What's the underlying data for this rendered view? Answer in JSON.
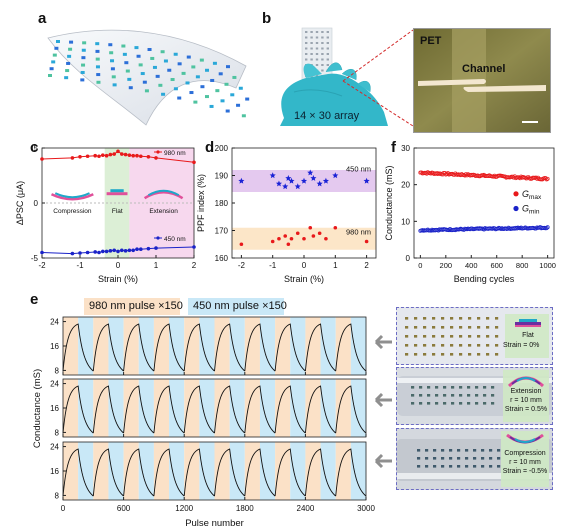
{
  "panel_labels": {
    "a": "a",
    "b": "b",
    "c": "c",
    "d": "d",
    "e": "e",
    "f": "f"
  },
  "panel_b": {
    "array_label": "14 × 30 array",
    "inset_pet": "PET",
    "inset_channel": "Channel"
  },
  "panel_e": {
    "legend_980": "980 nm pulse ×150",
    "legend_450": "450 nm pulse ×150",
    "photo_flat": {
      "title": "Flat",
      "line2": "Strain = 0%"
    },
    "photo_ext": {
      "title": "Extension",
      "line2": "r = 10 mm",
      "line3": "Strain = 0.5%"
    },
    "photo_comp": {
      "title": "Compression",
      "line2": "r = 10 mm",
      "line3": "Strain = -0.5%"
    }
  },
  "colors": {
    "red": "#e8191b",
    "blue": "#1a22c8",
    "orange_band": "#fbe1c7",
    "blue_band": "#c9e8f7",
    "green_band": "#dcefd6",
    "pink_band": "#f7d8ee",
    "purple_band": "#e4c9ef",
    "ppf_orange_band": "#fce6c8",
    "star_blue": "#1b22d6"
  },
  "chart_data": [
    {
      "id": "c",
      "type": "line",
      "xlabel": "Strain (%)",
      "ylabel": "ΔPSC (μA)",
      "xlim": [
        -2,
        2
      ],
      "ylim": [
        -5,
        5
      ],
      "xticks": [
        "-2",
        "-1",
        "0",
        "1",
        "2"
      ],
      "yticks": [
        "-5",
        "0",
        "5"
      ],
      "region_labels": [
        "Compression",
        "Flat",
        "Extension"
      ],
      "series": [
        {
          "name": "980 nm",
          "x": [
            -2,
            -1.2,
            -1.0,
            -0.8,
            -0.6,
            -0.5,
            -0.4,
            -0.3,
            -0.2,
            -0.1,
            0,
            0.1,
            0.2,
            0.3,
            0.4,
            0.5,
            0.6,
            0.8,
            1.0,
            2.0
          ],
          "y": [
            4.0,
            4.1,
            4.2,
            4.25,
            4.3,
            4.25,
            4.35,
            4.3,
            4.4,
            4.45,
            4.7,
            4.45,
            4.4,
            4.35,
            4.3,
            4.3,
            4.25,
            4.2,
            4.1,
            3.7
          ]
        },
        {
          "name": "450 nm",
          "x": [
            -2,
            -1.2,
            -1.0,
            -0.8,
            -0.6,
            -0.5,
            -0.4,
            -0.3,
            -0.2,
            -0.1,
            0,
            0.1,
            0.2,
            0.3,
            0.4,
            0.5,
            0.6,
            0.8,
            1.0,
            2.0
          ],
          "y": [
            -4.5,
            -4.6,
            -4.55,
            -4.5,
            -4.45,
            -4.5,
            -4.4,
            -4.4,
            -4.35,
            -4.3,
            -4.4,
            -4.3,
            -4.35,
            -4.3,
            -4.3,
            -4.2,
            -4.2,
            -4.15,
            -4.1,
            -4.0
          ]
        }
      ]
    },
    {
      "id": "d",
      "type": "scatter",
      "xlabel": "Strain (%)",
      "ylabel": "PPF index (%)",
      "xlim": [
        -2.3,
        2.3
      ],
      "ylim": [
        160,
        200
      ],
      "xticks": [
        "-2",
        "-1",
        "0",
        "1",
        "2"
      ],
      "yticks": [
        "160",
        "170",
        "180",
        "190",
        "200"
      ],
      "series": [
        {
          "name": "450 nm",
          "x": [
            -2,
            -1,
            -0.8,
            -0.6,
            -0.5,
            -0.4,
            -0.2,
            0,
            0.2,
            0.3,
            0.5,
            0.7,
            1.0,
            2.0
          ],
          "y": [
            188,
            190,
            187,
            186,
            189,
            188,
            186,
            188,
            191,
            189,
            187,
            188,
            190,
            188
          ]
        },
        {
          "name": "980 nm",
          "x": [
            -2,
            -1,
            -0.8,
            -0.6,
            -0.5,
            -0.4,
            -0.2,
            0,
            0.2,
            0.3,
            0.5,
            0.7,
            1.0,
            2.0
          ],
          "y": [
            165,
            166,
            167,
            168,
            165,
            167,
            169,
            167,
            171,
            168,
            169,
            167,
            171,
            166
          ]
        }
      ]
    },
    {
      "id": "f",
      "type": "scatter",
      "xlabel": "Bending cycles",
      "ylabel": "Conductance (mS)",
      "xlim": [
        -50,
        1050
      ],
      "ylim": [
        0,
        30
      ],
      "xticks": [
        "0",
        "200",
        "400",
        "600",
        "800",
        "1000"
      ],
      "yticks": [
        "0",
        "10",
        "20",
        "30"
      ],
      "legend": [
        "G_max",
        "G_min"
      ],
      "series": [
        {
          "name": "G_max",
          "x_range": [
            0,
            1000
          ],
          "y_start": 23.3,
          "y_end": 21.6,
          "noise": 0.5
        },
        {
          "name": "G_min",
          "x_range": [
            0,
            1000
          ],
          "y_start": 7.6,
          "y_end": 8.3,
          "noise": 0.4
        }
      ]
    },
    {
      "id": "e",
      "type": "line",
      "xlabel": "Pulse number",
      "ylabel": "Conductance (mS)",
      "xlim": [
        0,
        3000
      ],
      "xticks": [
        "0",
        "600",
        "1200",
        "1800",
        "2400",
        "3000"
      ],
      "yticks": [
        "8",
        "16",
        "24"
      ],
      "subplots": 3,
      "cycles": 10,
      "pulses_per_stage": 150,
      "g_min": 7.8,
      "g_max": 23.2
    }
  ]
}
